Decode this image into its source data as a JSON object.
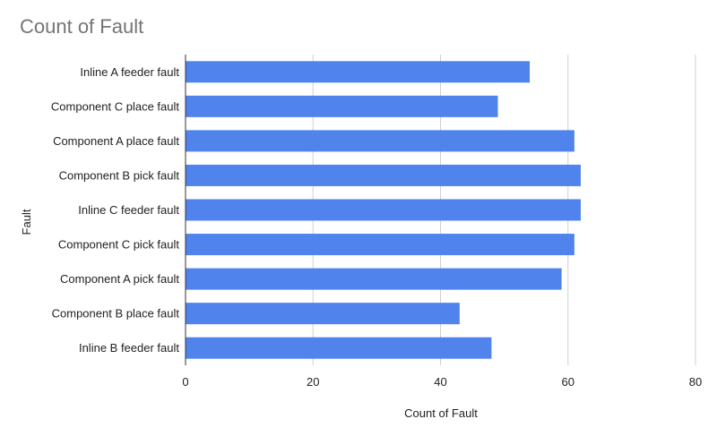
{
  "chart_data": {
    "type": "bar",
    "orientation": "horizontal",
    "title": "Count of Fault",
    "xlabel": "Count of Fault",
    "ylabel": "Fault",
    "categories": [
      "Inline A feeder fault",
      "Component C place fault",
      "Component A place fault",
      "Component B pick fault",
      "Inline C feeder fault",
      "Component C pick fault",
      "Component A pick fault",
      "Component B place fault",
      "Inline B feeder fault"
    ],
    "series": [
      {
        "values": [
          54,
          49,
          61,
          62,
          62,
          61,
          59,
          43,
          48
        ],
        "color": "#5083ec"
      }
    ],
    "xlim": [
      0,
      80
    ],
    "xticks": [
      "0",
      "20",
      "40",
      "60",
      "80"
    ],
    "grid": true
  }
}
